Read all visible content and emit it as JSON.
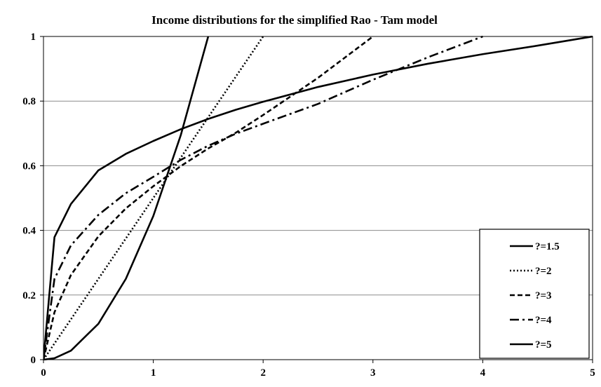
{
  "chart_data": {
    "type": "line",
    "title": "Income distributions for the simplified Rao - Tam model",
    "xlabel": "",
    "ylabel": "",
    "xlim": [
      0,
      5
    ],
    "ylim": [
      0,
      1
    ],
    "x_ticks": [
      "0",
      "1",
      "2",
      "3",
      "4",
      "5"
    ],
    "y_ticks": [
      "0",
      "0.2",
      "0.4",
      "0.6",
      "0.8",
      "1"
    ],
    "grid": "horizontal",
    "legend_position": "bottom-right",
    "series": [
      {
        "name": "?=1.5",
        "dash": "solid",
        "x": [
          0,
          0.1,
          0.25,
          0.5,
          0.75,
          1,
          1.25,
          1.5,
          1.75,
          2,
          2.5,
          3,
          3.5,
          4,
          4.5,
          5
        ],
        "y": [
          0,
          0.3789,
          0.4817,
          0.5858,
          0.6367,
          0.6765,
          0.713,
          0.7449,
          0.7731,
          0.7979,
          0.8437,
          0.882,
          0.9155,
          0.9452,
          0.9716,
          1.0
        ]
      },
      {
        "name": "?=2",
        "dash": "dotted",
        "x": [
          0,
          2
        ],
        "y": [
          0,
          1
        ]
      },
      {
        "name": "?=3",
        "dash": "dashed",
        "x": [
          0,
          0.1,
          0.25,
          0.5,
          0.75,
          1,
          1.25,
          1.5,
          1.75,
          2,
          2.5,
          3
        ],
        "y": [
          0,
          0.1467,
          0.2619,
          0.3816,
          0.468,
          0.5365,
          0.5989,
          0.6534,
          0.7019,
          0.7569,
          0.872,
          1.0
        ]
      },
      {
        "name": "?=4",
        "dash": "dash-dot",
        "x": [
          0,
          0.1,
          0.25,
          0.5,
          0.75,
          1,
          1.25,
          1.5,
          1.75,
          2,
          2.5,
          3,
          3.5,
          4
        ],
        "y": [
          0,
          0.25,
          0.3536,
          0.448,
          0.515,
          0.5657,
          0.6181,
          0.6619,
          0.6988,
          0.73,
          0.7913,
          0.866,
          0.9354,
          1.0
        ]
      },
      {
        "name": "?=5",
        "dash": "solid",
        "x": [
          0,
          0.1,
          0.25,
          0.5,
          0.75,
          1,
          1.25,
          1.5
        ],
        "y": [
          0,
          0.0044,
          0.0278,
          0.1111,
          0.25,
          0.4444,
          0.6944,
          1.0
        ]
      }
    ]
  }
}
